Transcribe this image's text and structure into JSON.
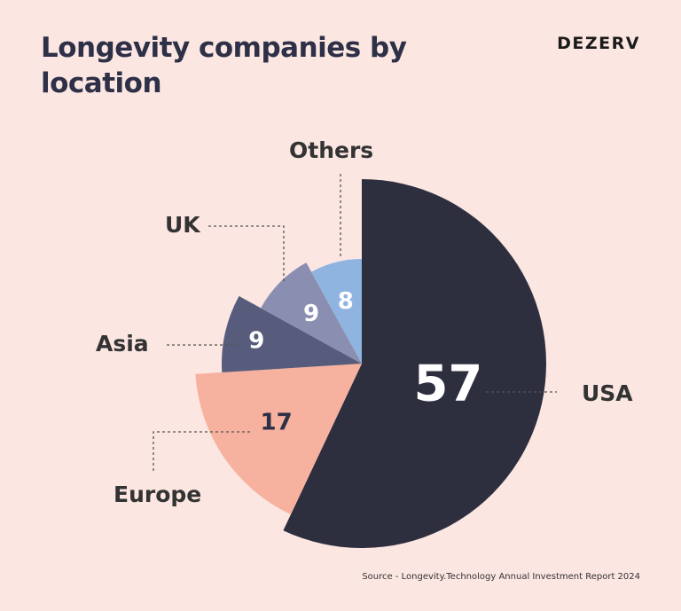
{
  "header": {
    "title": "Longevity companies by location",
    "brand": "DEZERV"
  },
  "footer": {
    "source": "Source - Longevity.Technology Annual Investment Report 2024"
  },
  "chart_data": {
    "type": "pie",
    "variant": "radial-varied-radius",
    "categories": [
      "USA",
      "Europe",
      "Asia",
      "UK",
      "Others"
    ],
    "values": [
      57,
      17,
      9,
      9,
      8
    ],
    "colors": [
      "#2d2e3e",
      "#f7b19f",
      "#585c7c",
      "#8a8fb1",
      "#8fb4e0"
    ],
    "title": "Longevity companies by location",
    "legend": "callout-labels"
  }
}
